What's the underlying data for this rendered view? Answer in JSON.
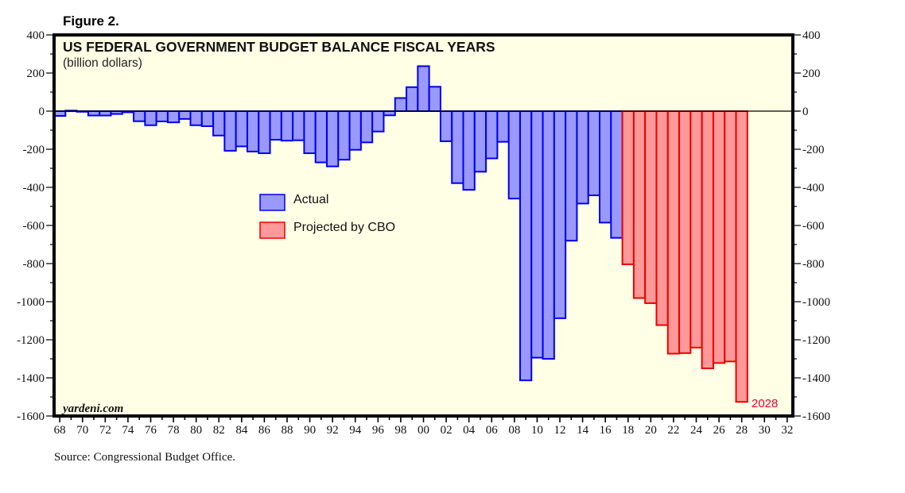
{
  "figure_label": "Figure 2.",
  "source": "Source: Congressional Budget Office.",
  "watermark": "yardeni.com",
  "colors": {
    "background": "#FFFFE6",
    "actual_fill": "#9999FF",
    "actual_stroke": "#0000EE",
    "projected_fill": "#FF9999",
    "projected_stroke": "#EE0000",
    "end_label": "#EE0033"
  },
  "chart_data": {
    "type": "bar",
    "title": "US FEDERAL GOVERNMENT BUDGET BALANCE FISCAL YEARS",
    "subtitle": "(billion dollars)",
    "xlabel": "",
    "ylabel": "billion dollars",
    "ylim": [
      -1600,
      400
    ],
    "xlim": [
      1968,
      2032
    ],
    "grid": false,
    "y_ticks": [
      400,
      200,
      0,
      -200,
      -400,
      -600,
      -800,
      -1000,
      -1200,
      -1400,
      -1600
    ],
    "y_tick_labels": [
      "400",
      "200",
      "0",
      "-200",
      "-400",
      "-600",
      "-800",
      "-1000",
      "-1200",
      "-1400",
      "-1600"
    ],
    "x_tick_labels": [
      "68",
      "70",
      "72",
      "74",
      "76",
      "78",
      "80",
      "82",
      "84",
      "86",
      "88",
      "90",
      "92",
      "94",
      "96",
      "98",
      "00",
      "02",
      "04",
      "06",
      "08",
      "10",
      "12",
      "14",
      "16",
      "18",
      "20",
      "22",
      "24",
      "26",
      "28",
      "30",
      "32"
    ],
    "legend": {
      "placement": "center-left",
      "entries": [
        "Actual",
        "Projected by CBO"
      ]
    },
    "end_annotation": "2028",
    "series": [
      {
        "name": "Actual",
        "x": [
          1968,
          1969,
          1970,
          1971,
          1972,
          1973,
          1974,
          1975,
          1976,
          1977,
          1978,
          1979,
          1980,
          1981,
          1982,
          1983,
          1984,
          1985,
          1986,
          1987,
          1988,
          1989,
          1990,
          1991,
          1992,
          1993,
          1994,
          1995,
          1996,
          1997,
          1998,
          1999,
          2000,
          2001,
          2002,
          2003,
          2004,
          2005,
          2006,
          2007,
          2008,
          2009,
          2010,
          2011,
          2012,
          2013,
          2014,
          2015,
          2016,
          2017
        ],
        "values": [
          -25,
          3,
          -3,
          -23,
          -23,
          -15,
          -6,
          -53,
          -74,
          -54,
          -59,
          -41,
          -74,
          -79,
          -128,
          -208,
          -185,
          -212,
          -221,
          -150,
          -155,
          -153,
          -221,
          -269,
          -290,
          -255,
          -203,
          -164,
          -107,
          -22,
          69,
          126,
          236,
          128,
          -158,
          -378,
          -413,
          -318,
          -248,
          -161,
          -459,
          -1413,
          -1294,
          -1300,
          -1087,
          -680,
          -485,
          -442,
          -585,
          -665
        ]
      },
      {
        "name": "Projected by CBO",
        "x": [
          2018,
          2019,
          2020,
          2021,
          2022,
          2023,
          2024,
          2025,
          2026,
          2027,
          2028
        ],
        "values": [
          -804,
          -981,
          -1008,
          -1123,
          -1273,
          -1270,
          -1241,
          -1350,
          -1322,
          -1314,
          -1526
        ]
      }
    ]
  }
}
